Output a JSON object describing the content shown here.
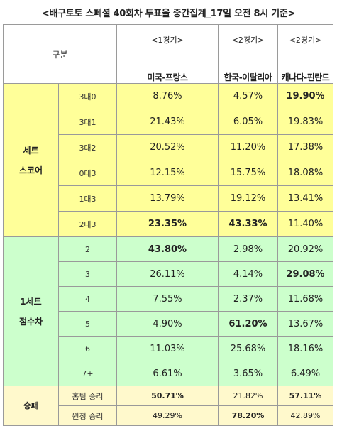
{
  "title": "<배구토토 스페셜 40회차 투표율 중간집계_17일 오전 8시 기준>",
  "header": {
    "gubun": "구분",
    "columns": [
      {
        "round": "<1경기>",
        "match": "미국-프랑스"
      },
      {
        "round": "<2경기>",
        "match": "한국-이탈리아"
      },
      {
        "round": "<2경기>",
        "match": "캐나다-핀란드"
      }
    ]
  },
  "groups": {
    "set_score": {
      "line1": "세트",
      "line2": "스코어"
    },
    "point_diff": {
      "line1": "1세트",
      "line2": "점수차"
    },
    "win_loss": {
      "line1": "승패"
    }
  },
  "set_rows": [
    {
      "label": "3대0",
      "values": [
        "8.76%",
        "4.57%",
        "19.90%"
      ],
      "bold": [
        false,
        false,
        true
      ]
    },
    {
      "label": "3대1",
      "values": [
        "21.43%",
        "6.05%",
        "19.83%"
      ],
      "bold": [
        false,
        false,
        false
      ]
    },
    {
      "label": "3대2",
      "values": [
        "20.52%",
        "11.20%",
        "17.38%"
      ],
      "bold": [
        false,
        false,
        false
      ]
    },
    {
      "label": "0대3",
      "values": [
        "12.15%",
        "15.75%",
        "18.08%"
      ],
      "bold": [
        false,
        false,
        false
      ]
    },
    {
      "label": "1대3",
      "values": [
        "13.79%",
        "19.12%",
        "13.41%"
      ],
      "bold": [
        false,
        false,
        false
      ]
    },
    {
      "label": "2대3",
      "values": [
        "23.35%",
        "43.33%",
        "11.40%"
      ],
      "bold": [
        true,
        true,
        false
      ]
    }
  ],
  "point_rows": [
    {
      "label": "2",
      "values": [
        "43.80%",
        "2.98%",
        "20.92%"
      ],
      "bold": [
        true,
        false,
        false
      ]
    },
    {
      "label": "3",
      "values": [
        "26.11%",
        "4.14%",
        "29.08%"
      ],
      "bold": [
        false,
        false,
        true
      ]
    },
    {
      "label": "4",
      "values": [
        "7.55%",
        "2.37%",
        "11.68%"
      ],
      "bold": [
        false,
        false,
        false
      ]
    },
    {
      "label": "5",
      "values": [
        "4.90%",
        "61.20%",
        "13.67%"
      ],
      "bold": [
        false,
        true,
        false
      ]
    },
    {
      "label": "6",
      "values": [
        "11.03%",
        "25.68%",
        "18.16%"
      ],
      "bold": [
        false,
        false,
        false
      ]
    },
    {
      "label": "7+",
      "values": [
        "6.61%",
        "3.65%",
        "6.49%"
      ],
      "bold": [
        false,
        false,
        false
      ]
    }
  ],
  "wl_rows": [
    {
      "label": "홈팀 승리",
      "values": [
        "50.71%",
        "21.82%",
        "57.11%"
      ],
      "bold": [
        true,
        false,
        true
      ]
    },
    {
      "label": "원정 승리",
      "values": [
        "49.29%",
        "78.20%",
        "42.89%"
      ],
      "bold": [
        false,
        true,
        false
      ]
    }
  ],
  "colors": {
    "set_bg": "#ffff99",
    "point_bg": "#ccffcc",
    "wl_bg": "#fff9cc",
    "border": "#9a9a9a"
  }
}
